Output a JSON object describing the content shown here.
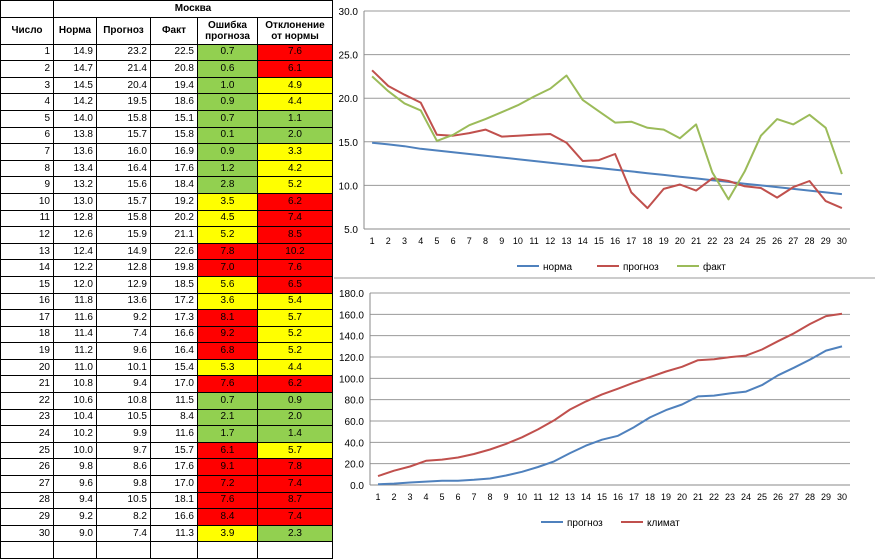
{
  "table": {
    "city": "Москва",
    "headers": {
      "day": "Число",
      "norm": "Норма",
      "forecast": "Прогноз",
      "fact": "Факт",
      "error": [
        "Ошибка",
        "прогноза"
      ],
      "deviation": [
        "Отклонение",
        "от нормы"
      ]
    },
    "colors": {
      "green": "#92d050",
      "yellow": "#ffff00",
      "red": "#ff0000"
    },
    "rows": [
      {
        "day": "1",
        "norm": "14.9",
        "forecast": "23.2",
        "fact": "22.5",
        "error": "0.7",
        "error_color": "green",
        "dev": "7.6",
        "dev_color": "red"
      },
      {
        "day": "2",
        "norm": "14.7",
        "forecast": "21.4",
        "fact": "20.8",
        "error": "0.6",
        "error_color": "green",
        "dev": "6.1",
        "dev_color": "red"
      },
      {
        "day": "3",
        "norm": "14.5",
        "forecast": "20.4",
        "fact": "19.4",
        "error": "1.0",
        "error_color": "green",
        "dev": "4.9",
        "dev_color": "yellow"
      },
      {
        "day": "4",
        "norm": "14.2",
        "forecast": "19.5",
        "fact": "18.6",
        "error": "0.9",
        "error_color": "green",
        "dev": "4.4",
        "dev_color": "yellow"
      },
      {
        "day": "5",
        "norm": "14.0",
        "forecast": "15.8",
        "fact": "15.1",
        "error": "0.7",
        "error_color": "green",
        "dev": "1.1",
        "dev_color": "green"
      },
      {
        "day": "6",
        "norm": "13.8",
        "forecast": "15.7",
        "fact": "15.8",
        "error": "0.1",
        "error_color": "green",
        "dev": "2.0",
        "dev_color": "green"
      },
      {
        "day": "7",
        "norm": "13.6",
        "forecast": "16.0",
        "fact": "16.9",
        "error": "0.9",
        "error_color": "green",
        "dev": "3.3",
        "dev_color": "yellow"
      },
      {
        "day": "8",
        "norm": "13.4",
        "forecast": "16.4",
        "fact": "17.6",
        "error": "1.2",
        "error_color": "green",
        "dev": "4.2",
        "dev_color": "yellow"
      },
      {
        "day": "9",
        "norm": "13.2",
        "forecast": "15.6",
        "fact": "18.4",
        "error": "2.8",
        "error_color": "green",
        "dev": "5.2",
        "dev_color": "yellow"
      },
      {
        "day": "10",
        "norm": "13.0",
        "forecast": "15.7",
        "fact": "19.2",
        "error": "3.5",
        "error_color": "yellow",
        "dev": "6.2",
        "dev_color": "red"
      },
      {
        "day": "11",
        "norm": "12.8",
        "forecast": "15.8",
        "fact": "20.2",
        "error": "4.5",
        "error_color": "yellow",
        "dev": "7.4",
        "dev_color": "red"
      },
      {
        "day": "12",
        "norm": "12.6",
        "forecast": "15.9",
        "fact": "21.1",
        "error": "5.2",
        "error_color": "yellow",
        "dev": "8.5",
        "dev_color": "red"
      },
      {
        "day": "13",
        "norm": "12.4",
        "forecast": "14.9",
        "fact": "22.6",
        "error": "7.8",
        "error_color": "red",
        "dev": "10.2",
        "dev_color": "red"
      },
      {
        "day": "14",
        "norm": "12.2",
        "forecast": "12.8",
        "fact": "19.8",
        "error": "7.0",
        "error_color": "red",
        "dev": "7.6",
        "dev_color": "red"
      },
      {
        "day": "15",
        "norm": "12.0",
        "forecast": "12.9",
        "fact": "18.5",
        "error": "5.6",
        "error_color": "yellow",
        "dev": "6.5",
        "dev_color": "red"
      },
      {
        "day": "16",
        "norm": "11.8",
        "forecast": "13.6",
        "fact": "17.2",
        "error": "3.6",
        "error_color": "yellow",
        "dev": "5.4",
        "dev_color": "yellow"
      },
      {
        "day": "17",
        "norm": "11.6",
        "forecast": "9.2",
        "fact": "17.3",
        "error": "8.1",
        "error_color": "red",
        "dev": "5.7",
        "dev_color": "yellow"
      },
      {
        "day": "18",
        "norm": "11.4",
        "forecast": "7.4",
        "fact": "16.6",
        "error": "9.2",
        "error_color": "red",
        "dev": "5.2",
        "dev_color": "yellow"
      },
      {
        "day": "19",
        "norm": "11.2",
        "forecast": "9.6",
        "fact": "16.4",
        "error": "6.8",
        "error_color": "red",
        "dev": "5.2",
        "dev_color": "yellow"
      },
      {
        "day": "20",
        "norm": "11.0",
        "forecast": "10.1",
        "fact": "15.4",
        "error": "5.3",
        "error_color": "yellow",
        "dev": "4.4",
        "dev_color": "yellow"
      },
      {
        "day": "21",
        "norm": "10.8",
        "forecast": "9.4",
        "fact": "17.0",
        "error": "7.6",
        "error_color": "red",
        "dev": "6.2",
        "dev_color": "red"
      },
      {
        "day": "22",
        "norm": "10.6",
        "forecast": "10.8",
        "fact": "11.5",
        "error": "0.7",
        "error_color": "green",
        "dev": "0.9",
        "dev_color": "green"
      },
      {
        "day": "23",
        "norm": "10.4",
        "forecast": "10.5",
        "fact": "8.4",
        "error": "2.1",
        "error_color": "green",
        "dev": "2.0",
        "dev_color": "green"
      },
      {
        "day": "24",
        "norm": "10.2",
        "forecast": "9.9",
        "fact": "11.6",
        "error": "1.7",
        "error_color": "green",
        "dev": "1.4",
        "dev_color": "green"
      },
      {
        "day": "25",
        "norm": "10.0",
        "forecast": "9.7",
        "fact": "15.7",
        "error": "6.1",
        "error_color": "red",
        "dev": "5.7",
        "dev_color": "yellow"
      },
      {
        "day": "26",
        "norm": "9.8",
        "forecast": "8.6",
        "fact": "17.6",
        "error": "9.1",
        "error_color": "red",
        "dev": "7.8",
        "dev_color": "red"
      },
      {
        "day": "27",
        "norm": "9.6",
        "forecast": "9.8",
        "fact": "17.0",
        "error": "7.2",
        "error_color": "red",
        "dev": "7.4",
        "dev_color": "red"
      },
      {
        "day": "28",
        "norm": "9.4",
        "forecast": "10.5",
        "fact": "18.1",
        "error": "7.6",
        "error_color": "red",
        "dev": "8.7",
        "dev_color": "red"
      },
      {
        "day": "29",
        "norm": "9.2",
        "forecast": "8.2",
        "fact": "16.6",
        "error": "8.4",
        "error_color": "red",
        "dev": "7.4",
        "dev_color": "red"
      },
      {
        "day": "30",
        "norm": "9.0",
        "forecast": "7.4",
        "fact": "11.3",
        "error": "3.9",
        "error_color": "yellow",
        "dev": "2.3",
        "dev_color": "green"
      }
    ]
  },
  "chart_data": [
    {
      "type": "line",
      "title": "",
      "xlabel": "",
      "ylabel": "",
      "x": [
        1,
        2,
        3,
        4,
        5,
        6,
        7,
        8,
        9,
        10,
        11,
        12,
        13,
        14,
        15,
        16,
        17,
        18,
        19,
        20,
        21,
        22,
        23,
        24,
        25,
        26,
        27,
        28,
        29,
        30
      ],
      "ylim": [
        5,
        30
      ],
      "yticks": [
        "5.0",
        "10.0",
        "15.0",
        "20.0",
        "25.0",
        "30.0"
      ],
      "grid": true,
      "legend": "bottom",
      "series": [
        {
          "name": "норма",
          "color": "#4f81bd",
          "values": [
            14.9,
            14.7,
            14.5,
            14.2,
            14.0,
            13.8,
            13.6,
            13.4,
            13.2,
            13.0,
            12.8,
            12.6,
            12.4,
            12.2,
            12.0,
            11.8,
            11.6,
            11.4,
            11.2,
            11.0,
            10.8,
            10.6,
            10.4,
            10.2,
            10.0,
            9.8,
            9.6,
            9.4,
            9.2,
            9.0
          ]
        },
        {
          "name": "прогноз",
          "color": "#c0504d",
          "values": [
            23.2,
            21.4,
            20.4,
            19.5,
            15.8,
            15.7,
            16.0,
            16.4,
            15.6,
            15.7,
            15.8,
            15.9,
            14.9,
            12.8,
            12.9,
            13.6,
            9.2,
            7.4,
            9.6,
            10.1,
            9.4,
            10.8,
            10.5,
            9.9,
            9.7,
            8.6,
            9.8,
            10.5,
            8.2,
            7.4
          ]
        },
        {
          "name": "факт",
          "color": "#9bbb59",
          "values": [
            22.5,
            20.8,
            19.4,
            18.6,
            15.1,
            15.8,
            16.9,
            17.6,
            18.4,
            19.2,
            20.2,
            21.1,
            22.6,
            19.8,
            18.5,
            17.2,
            17.3,
            16.6,
            16.4,
            15.4,
            17.0,
            11.5,
            8.4,
            11.6,
            15.7,
            17.6,
            17.0,
            18.1,
            16.6,
            11.3
          ]
        }
      ]
    },
    {
      "type": "line",
      "title": "",
      "xlabel": "",
      "ylabel": "",
      "x": [
        1,
        2,
        3,
        4,
        5,
        6,
        7,
        8,
        9,
        10,
        11,
        12,
        13,
        14,
        15,
        16,
        17,
        18,
        19,
        20,
        21,
        22,
        23,
        24,
        25,
        26,
        27,
        28,
        29,
        30
      ],
      "ylim": [
        0,
        180
      ],
      "yticks": [
        "0.0",
        "20.0",
        "40.0",
        "60.0",
        "80.0",
        "100.0",
        "120.0",
        "140.0",
        "160.0",
        "180.0"
      ],
      "grid": true,
      "legend": "bottom",
      "series": [
        {
          "name": "прогноз",
          "color": "#4f81bd",
          "values": [
            0.7,
            1.3,
            2.3,
            3.2,
            3.9,
            4.0,
            4.9,
            6.1,
            8.9,
            12.4,
            16.9,
            22.1,
            29.9,
            36.9,
            42.5,
            46.1,
            54.2,
            63.4,
            70.2,
            75.5,
            83.1,
            83.8,
            85.9,
            87.6,
            93.7,
            102.8,
            110.0,
            117.6,
            126.0,
            129.9
          ]
        },
        {
          "name": "климат",
          "color": "#c0504d",
          "values": [
            8.3,
            13.4,
            17.3,
            22.7,
            23.8,
            25.8,
            29.1,
            33.3,
            38.5,
            44.7,
            52.1,
            60.6,
            70.8,
            78.4,
            84.9,
            90.3,
            96.0,
            101.2,
            106.4,
            110.8,
            117.0,
            117.9,
            119.9,
            121.3,
            127.0,
            134.8,
            142.2,
            150.9,
            158.3,
            160.6
          ]
        }
      ]
    }
  ]
}
